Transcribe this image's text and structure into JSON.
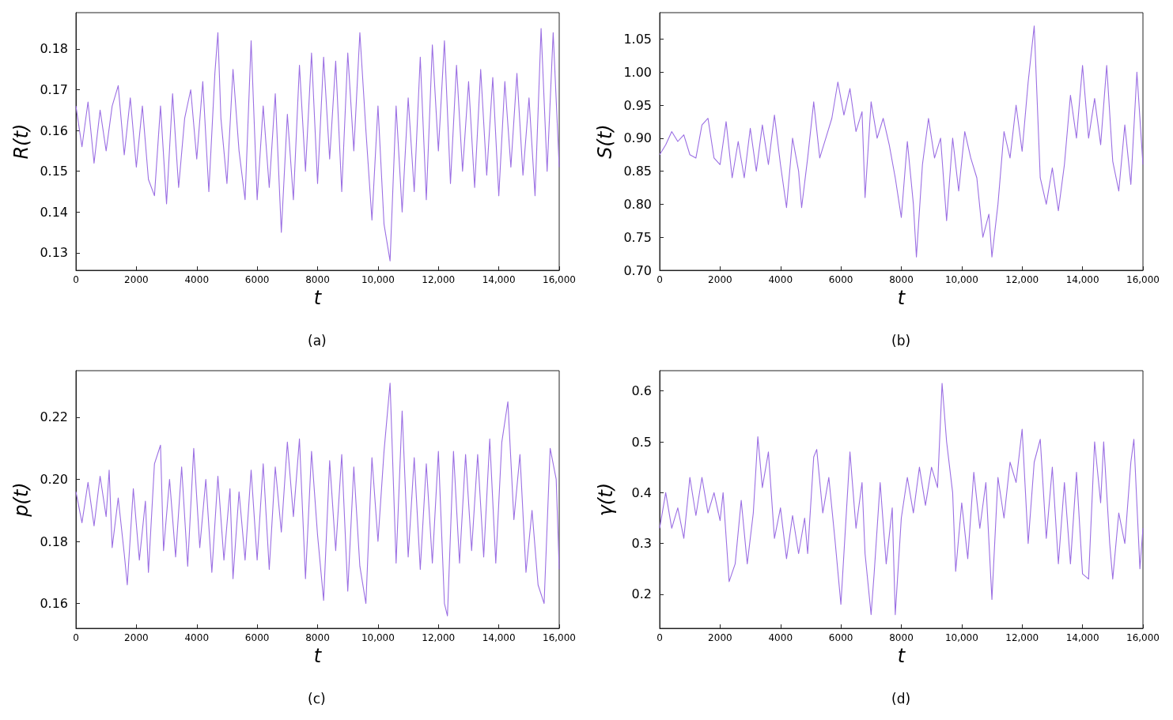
{
  "chart_data": [
    {
      "type": "line",
      "xlabel": "t",
      "ylabel": "R(t)",
      "annotations": [
        "(a)"
      ],
      "xlim": [
        0,
        16000
      ],
      "xticks": [
        0,
        2000,
        4000,
        6000,
        8000,
        {
          "value": 10000,
          "label": "10,000"
        },
        {
          "value": 12000,
          "label": "12,000"
        },
        {
          "value": 14000,
          "label": "14,000"
        },
        {
          "value": 16000,
          "label": "16,000"
        }
      ],
      "ylim": [
        0.1257,
        0.1889
      ],
      "yticks": [
        0.13,
        0.14,
        0.15,
        0.16,
        0.17,
        0.18
      ],
      "series": [
        {
          "color": "#9b6fe3",
          "x": [
            0,
            200,
            400,
            600,
            800,
            1000,
            1200,
            1400,
            1600,
            1800,
            2000,
            2200,
            2400,
            2600,
            2800,
            3000,
            3200,
            3400,
            3600,
            3800,
            4000,
            4200,
            4400,
            4600,
            4700,
            4800,
            5000,
            5200,
            5400,
            5600,
            5800,
            6000,
            6200,
            6400,
            6600,
            6800,
            7000,
            7200,
            7400,
            7600,
            7800,
            8000,
            8200,
            8400,
            8600,
            8800,
            9000,
            9200,
            9400,
            9600,
            9800,
            10000,
            10200,
            10400,
            10600,
            10800,
            11000,
            11200,
            11400,
            11600,
            11800,
            12000,
            12200,
            12400,
            12600,
            12800,
            13000,
            13200,
            13400,
            13600,
            13800,
            14000,
            14200,
            14400,
            14600,
            14800,
            15000,
            15200,
            15400,
            15600,
            15800,
            16000
          ],
          "values": [
            0.166,
            0.156,
            0.167,
            0.152,
            0.165,
            0.155,
            0.166,
            0.171,
            0.154,
            0.168,
            0.151,
            0.166,
            0.148,
            0.144,
            0.166,
            0.142,
            0.169,
            0.146,
            0.163,
            0.17,
            0.153,
            0.172,
            0.145,
            0.174,
            0.184,
            0.163,
            0.147,
            0.175,
            0.155,
            0.143,
            0.182,
            0.143,
            0.166,
            0.146,
            0.169,
            0.135,
            0.164,
            0.143,
            0.176,
            0.15,
            0.179,
            0.147,
            0.178,
            0.153,
            0.177,
            0.145,
            0.179,
            0.155,
            0.184,
            0.16,
            0.138,
            0.166,
            0.137,
            0.128,
            0.166,
            0.14,
            0.168,
            0.145,
            0.178,
            0.143,
            0.181,
            0.155,
            0.182,
            0.147,
            0.176,
            0.15,
            0.172,
            0.146,
            0.175,
            0.149,
            0.173,
            0.144,
            0.172,
            0.151,
            0.174,
            0.149,
            0.168,
            0.144,
            0.185,
            0.15,
            0.184,
            0.151
          ]
        }
      ]
    },
    {
      "type": "line",
      "xlabel": "t",
      "ylabel": "S(t)",
      "annotations": [
        "(b)"
      ],
      "xlim": [
        0,
        16000
      ],
      "xticks": [
        0,
        2000,
        4000,
        6000,
        8000,
        {
          "value": 10000,
          "label": "10,000"
        },
        {
          "value": 12000,
          "label": "12,000"
        },
        {
          "value": 14000,
          "label": "14,000"
        },
        {
          "value": 16000,
          "label": "16,000"
        }
      ],
      "ylim": [
        0.7,
        1.09
      ],
      "yticks": [
        {
          "value": 0.7,
          "label": "0.70"
        },
        0.75,
        {
          "value": 0.8,
          "label": "0.80"
        },
        0.85,
        {
          "value": 0.9,
          "label": "0.90"
        },
        0.95,
        {
          "value": 1,
          "label": "1.00"
        },
        1.05
      ],
      "series": [
        {
          "color": "#9b6fe3",
          "x": [
            0,
            200,
            400,
            600,
            800,
            1000,
            1200,
            1400,
            1600,
            1800,
            2000,
            2200,
            2400,
            2600,
            2800,
            3000,
            3200,
            3400,
            3600,
            3800,
            4000,
            4200,
            4400,
            4600,
            4700,
            4900,
            5100,
            5300,
            5500,
            5700,
            5900,
            6100,
            6300,
            6500,
            6700,
            6800,
            7000,
            7200,
            7400,
            7600,
            7800,
            8000,
            8200,
            8400,
            8500,
            8700,
            8900,
            9100,
            9300,
            9500,
            9700,
            9900,
            10100,
            10300,
            10500,
            10700,
            10900,
            11000,
            11200,
            11400,
            11600,
            11800,
            12000,
            12200,
            12400,
            12600,
            12800,
            13000,
            13200,
            13400,
            13600,
            13800,
            14000,
            14200,
            14400,
            14600,
            14800,
            15000,
            15200,
            15400,
            15600,
            15800,
            16000
          ],
          "values": [
            0.875,
            0.89,
            0.91,
            0.895,
            0.905,
            0.875,
            0.87,
            0.92,
            0.93,
            0.87,
            0.86,
            0.925,
            0.84,
            0.895,
            0.84,
            0.915,
            0.85,
            0.92,
            0.86,
            0.935,
            0.86,
            0.795,
            0.9,
            0.85,
            0.795,
            0.87,
            0.955,
            0.87,
            0.9,
            0.93,
            0.985,
            0.935,
            0.975,
            0.91,
            0.94,
            0.81,
            0.955,
            0.9,
            0.93,
            0.89,
            0.84,
            0.78,
            0.895,
            0.8,
            0.72,
            0.86,
            0.93,
            0.87,
            0.9,
            0.775,
            0.9,
            0.82,
            0.91,
            0.87,
            0.84,
            0.75,
            0.785,
            0.72,
            0.8,
            0.91,
            0.87,
            0.95,
            0.88,
            0.985,
            1.07,
            0.84,
            0.8,
            0.855,
            0.79,
            0.86,
            0.965,
            0.9,
            1.01,
            0.9,
            0.96,
            0.89,
            1.01,
            0.865,
            0.82,
            0.92,
            0.83,
            1.0,
            0.86
          ]
        }
      ]
    },
    {
      "type": "line",
      "xlabel": "t",
      "ylabel": "p(t)",
      "annotations": [
        "(c)"
      ],
      "xlim": [
        0,
        16000
      ],
      "xticks": [
        0,
        2000,
        4000,
        6000,
        8000,
        {
          "value": 10000,
          "label": "10,000"
        },
        {
          "value": 12000,
          "label": "12,000"
        },
        {
          "value": 14000,
          "label": "14,000"
        },
        {
          "value": 16000,
          "label": "16,000"
        }
      ],
      "ylim": [
        0.152,
        0.235
      ],
      "yticks": [
        0.16,
        0.18,
        {
          "value": 0.2,
          "label": "0.20"
        },
        0.22
      ],
      "series": [
        {
          "color": "#9b6fe3",
          "x": [
            0,
            200,
            400,
            600,
            800,
            1000,
            1100,
            1200,
            1400,
            1600,
            1700,
            1900,
            2100,
            2300,
            2400,
            2600,
            2800,
            2900,
            3100,
            3300,
            3500,
            3700,
            3900,
            4100,
            4300,
            4500,
            4700,
            4900,
            5100,
            5200,
            5400,
            5600,
            5800,
            6000,
            6200,
            6400,
            6600,
            6800,
            7000,
            7200,
            7400,
            7600,
            7800,
            8000,
            8200,
            8400,
            8600,
            8800,
            9000,
            9200,
            9400,
            9600,
            9800,
            10000,
            10200,
            10400,
            10600,
            10800,
            11000,
            11200,
            11400,
            11600,
            11800,
            12000,
            12200,
            12300,
            12500,
            12700,
            12900,
            13100,
            13300,
            13500,
            13700,
            13900,
            14100,
            14300,
            14500,
            14700,
            14900,
            15100,
            15300,
            15500,
            15700,
            15900,
            16000
          ],
          "values": [
            0.196,
            0.186,
            0.199,
            0.185,
            0.201,
            0.188,
            0.203,
            0.178,
            0.194,
            0.176,
            0.166,
            0.197,
            0.174,
            0.193,
            0.17,
            0.205,
            0.211,
            0.177,
            0.2,
            0.175,
            0.204,
            0.172,
            0.21,
            0.178,
            0.2,
            0.17,
            0.201,
            0.174,
            0.197,
            0.168,
            0.196,
            0.174,
            0.203,
            0.174,
            0.205,
            0.171,
            0.204,
            0.183,
            0.212,
            0.188,
            0.213,
            0.168,
            0.209,
            0.182,
            0.161,
            0.206,
            0.177,
            0.208,
            0.164,
            0.204,
            0.172,
            0.16,
            0.207,
            0.18,
            0.209,
            0.231,
            0.173,
            0.222,
            0.175,
            0.207,
            0.171,
            0.205,
            0.173,
            0.209,
            0.16,
            0.156,
            0.209,
            0.173,
            0.208,
            0.177,
            0.208,
            0.175,
            0.213,
            0.173,
            0.212,
            0.225,
            0.187,
            0.208,
            0.17,
            0.19,
            0.166,
            0.16,
            0.21,
            0.2,
            0.171
          ]
        }
      ]
    },
    {
      "type": "line",
      "xlabel": "t",
      "ylabel": "γ(t)",
      "annotations": [
        "(d)"
      ],
      "xlim": [
        0,
        16000
      ],
      "xticks": [
        0,
        2000,
        4000,
        6000,
        8000,
        {
          "value": 10000,
          "label": "10,000"
        },
        {
          "value": 12000,
          "label": "12,000"
        },
        {
          "value": 14000,
          "label": "14,000"
        },
        {
          "value": 16000,
          "label": "16,000"
        }
      ],
      "ylim": [
        0.133,
        0.64
      ],
      "yticks": [
        0.2,
        0.3,
        0.4,
        0.5,
        0.6
      ],
      "series": [
        {
          "color": "#9b6fe3",
          "x": [
            0,
            200,
            400,
            600,
            800,
            1000,
            1200,
            1400,
            1600,
            1800,
            2000,
            2100,
            2300,
            2500,
            2700,
            2900,
            3100,
            3250,
            3400,
            3600,
            3800,
            4000,
            4200,
            4400,
            4600,
            4800,
            4900,
            5100,
            5200,
            5400,
            5600,
            5800,
            6000,
            6100,
            6300,
            6500,
            6700,
            6800,
            7000,
            7100,
            7300,
            7500,
            7700,
            7800,
            8000,
            8200,
            8400,
            8600,
            8800,
            9000,
            9200,
            9350,
            9500,
            9700,
            9800,
            10000,
            10200,
            10400,
            10600,
            10800,
            11000,
            11200,
            11400,
            11600,
            11800,
            12000,
            12200,
            12400,
            12600,
            12800,
            13000,
            13200,
            13400,
            13600,
            13800,
            14000,
            14200,
            14400,
            14600,
            14700,
            14900,
            15000,
            15200,
            15400,
            15600,
            15700,
            15900,
            16000
          ],
          "values": [
            0.33,
            0.4,
            0.33,
            0.37,
            0.31,
            0.43,
            0.355,
            0.43,
            0.36,
            0.4,
            0.345,
            0.4,
            0.225,
            0.26,
            0.385,
            0.26,
            0.36,
            0.51,
            0.41,
            0.48,
            0.31,
            0.37,
            0.27,
            0.355,
            0.28,
            0.35,
            0.28,
            0.47,
            0.485,
            0.36,
            0.43,
            0.31,
            0.18,
            0.28,
            0.48,
            0.33,
            0.42,
            0.28,
            0.16,
            0.24,
            0.42,
            0.26,
            0.37,
            0.16,
            0.35,
            0.43,
            0.36,
            0.45,
            0.375,
            0.45,
            0.41,
            0.615,
            0.5,
            0.4,
            0.245,
            0.38,
            0.27,
            0.44,
            0.33,
            0.42,
            0.19,
            0.43,
            0.35,
            0.46,
            0.42,
            0.525,
            0.3,
            0.46,
            0.505,
            0.31,
            0.45,
            0.26,
            0.42,
            0.26,
            0.44,
            0.24,
            0.23,
            0.5,
            0.38,
            0.5,
            0.3,
            0.23,
            0.36,
            0.3,
            0.46,
            0.505,
            0.25,
            0.33
          ]
        }
      ]
    }
  ]
}
